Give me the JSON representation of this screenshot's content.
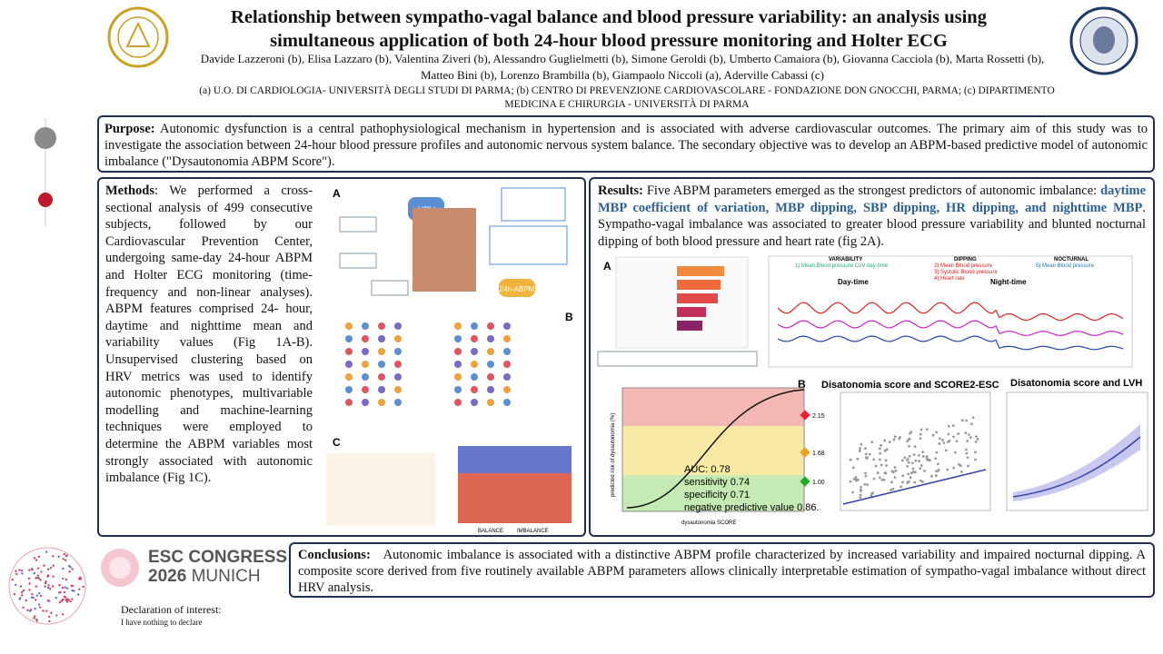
{
  "header": {
    "title": "Relationship between sympatho-vagal balance and blood pressure variability: an analysis using simultaneous application of both 24-hour blood pressure monitoring and Holter ECG",
    "authors": "Davide Lazzeroni (b), Elisa Lazzaro (b), Valentina Ziveri (b), Alessandro Guglielmetti (b), Simone Geroldi (b), Umberto Camaiora (b), Giovanna Cacciola (b), Marta Rossetti (b), Matteo Bini (b), Lorenzo Brambilla (b), Giampaolo Niccoli (a), Aderville Cabassi (c)",
    "affiliations": "(a) U.O. DI CARDIOLOGIA- UNIVERSITÀ DEGLI STUDI DI PARMA; (b) CENTRO DI PREVENZIONE CARDIOVASCOLARE - FONDAZIONE DON GNOCCHI, PARMA; (c) DIPARTIMENTO MEDICINA E CHIRURGIA - UNIVERSITÀ DI PARMA"
  },
  "purpose": {
    "label": "Purpose:",
    "text": "Autonomic dysfunction is a central pathophysiological mechanism in hypertension and is associated with adverse cardiovascular outcomes. The primary aim of this study was to investigate the association between 24-hour blood pressure profiles and autonomic nervous system balance. The secondary objective was to develop an ABPM-based predictive model of autonomic imbalance (\"Dysautonomia ABPM Score\")."
  },
  "methods": {
    "label": "Methods",
    "text": ": We performed a cross-sectional analysis of 499 consecutive subjects, followed by our Cardiovascular Prevention Center, undergoing same-day 24-hour ABPM and Holter ECG monitoring (time-frequency and non-linear analyses). ABPM features comprised 24- hour, daytime and nighttime mean and variability values (Fig 1A-B). Unsupervised clustering based on HRV metrics was used to identify autonomic phenotypes, multivariable modelling and machine-learning techniques were employed to determine the ABPM variables most strongly associated with autonomic imbalance (Fig 1C).",
    "figure_labels": [
      "A",
      "B",
      "C"
    ],
    "figure_texts": [
      "HRV",
      "24h-ABPM",
      "BALANCE",
      "IMBALANCE"
    ]
  },
  "results": {
    "label": "Results:",
    "intro": "Five ABPM parameters emerged as the strongest predictors of autonomic imbalance:",
    "highlight": "daytime MBP coefficient of variation, MBP dipping, SBP dipping, HR dipping, and nighttime MBP",
    "text": ". Sympatho-vagal imbalance was associated to greater blood pressure variability and blunted nocturnal dipping of both blood pressure and heart rate (fig 2A).",
    "figure_labels": [
      "A",
      "B"
    ],
    "wave_labels": [
      "VARIABILITY",
      "1) Mean Blood pressure CoV day-time",
      "DIPPING",
      "2) Mean Blood pressure",
      "3) Systolic Blood pressure",
      "4) Heart rate",
      "NOCTURNAL",
      "5) Mean Blood pressure",
      "Day-time",
      "Night-time"
    ],
    "roc": {
      "auc": "AUC: 0.78",
      "sensitivity": "sensitivity 0.74",
      "specificity": "specificity 0.71",
      "npv": "negative predictive value 0.86.",
      "thresholds": [
        "2.15",
        "1.68",
        "1.00"
      ],
      "x_label": "dysautonomia SCORE",
      "y_label": "predicted risk of dysautonomia (%)"
    },
    "scatter_titles": [
      "Disatonomia score and SCORE2-ESC",
      "Disatonomia score and LVH"
    ]
  },
  "conclusions": {
    "label": "Conclusions:",
    "text": "Autonomic imbalance is associated with a distinctive ABPM profile characterized by increased variability and impaired nocturnal dipping. A composite score derived from five routinely available ABPM parameters allows clinically interpretable estimation of sympatho-vagal imbalance without direct HRV analysis."
  },
  "logo": {
    "line1": "ESC CONGRESS",
    "line2_bold": "2026",
    "line2": "MUNICH"
  },
  "declaration": {
    "title": "Declaration of interest:",
    "text": "I have nothing to declare"
  }
}
